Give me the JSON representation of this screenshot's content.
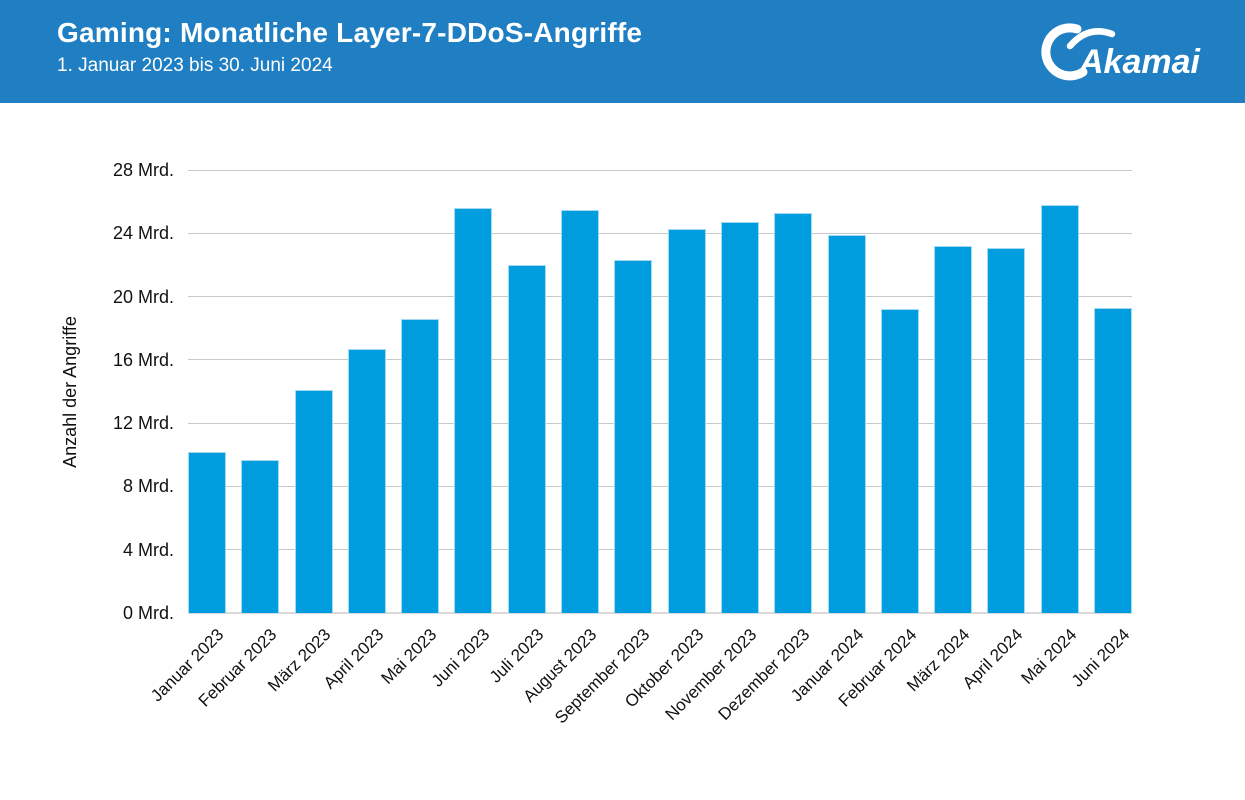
{
  "header": {
    "title": "Gaming: Monatliche Layer-7-DDoS-Angriffe",
    "subtitle": "1. Januar 2023 bis 30. Juni 2024",
    "logo_text": "Akamai",
    "background_color": "#1f7fc2",
    "text_color": "#ffffff"
  },
  "chart_data": {
    "type": "bar",
    "title": "Gaming: Monatliche Layer-7-DDoS-Angriffe",
    "subtitle": "1. Januar 2023 bis 30. Juni 2024",
    "categories": [
      "Januar 2023",
      "Februar 2023",
      "März 2023",
      "April 2023",
      "Mai 2023",
      "Juni 2023",
      "Juli 2023",
      "August 2023",
      "September 2023",
      "Oktober 2023",
      "November 2023",
      "Dezember 2023",
      "Januar 2024",
      "Februar 2024",
      "März 2024",
      "April 2024",
      "Mai 2024",
      "Juni 2024"
    ],
    "values": [
      10.2,
      9.7,
      14.1,
      16.7,
      18.6,
      25.6,
      22.0,
      25.5,
      22.3,
      24.3,
      24.7,
      25.3,
      23.9,
      19.2,
      23.2,
      23.1,
      25.8,
      19.3
    ],
    "value_unit": "Mrd.",
    "xlabel": "",
    "ylabel": "Anzahl der Angriffe",
    "ylim": [
      0,
      28
    ],
    "yticks": [
      0,
      4,
      8,
      12,
      16,
      20,
      24,
      28
    ],
    "ytick_labels": [
      "0 Mrd.",
      "4 Mrd.",
      "8 Mrd.",
      "12 Mrd.",
      "16 Mrd.",
      "20 Mrd.",
      "24 Mrd.",
      "28 Mrd."
    ],
    "grid": true,
    "legend": "none",
    "bar_color": "#009ddf",
    "bar_edge_color": "#a6d9f2",
    "gridline_color": "#c9c9cd",
    "axis_text_color": "#111111"
  }
}
